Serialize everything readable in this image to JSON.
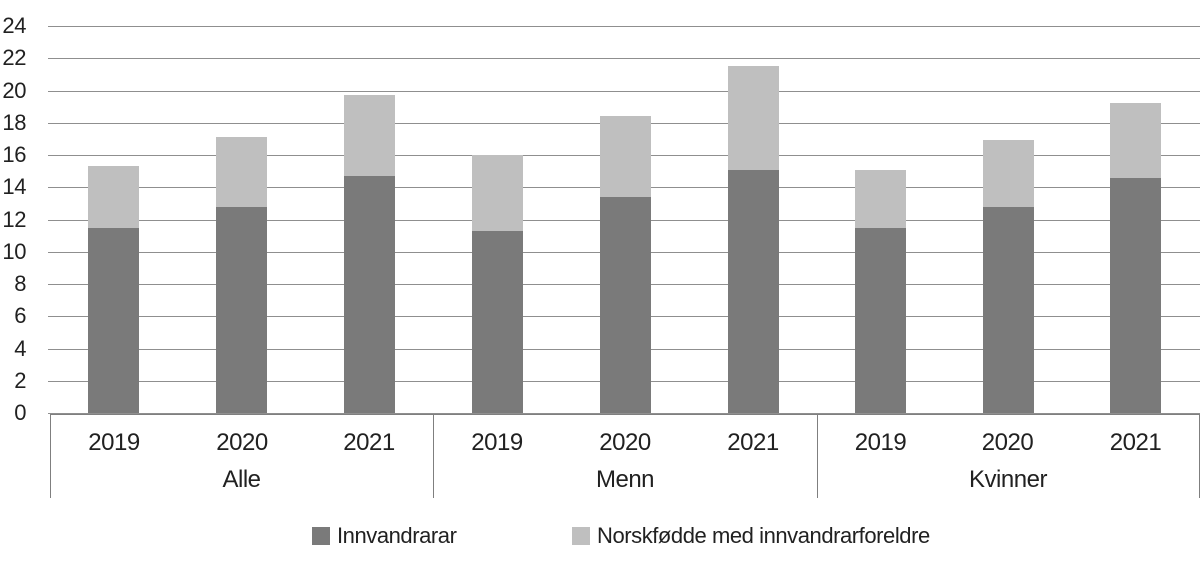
{
  "chart_data": {
    "type": "bar",
    "variant": "stacked-column",
    "title": "",
    "group_labels": [
      "Alle",
      "Menn",
      "Kvinner"
    ],
    "year_labels": [
      "2019",
      "2020",
      "2021"
    ],
    "categories": [
      "Alle 2019",
      "Alle 2020",
      "Alle 2021",
      "Menn 2019",
      "Menn 2020",
      "Menn 2021",
      "Kvinner 2019",
      "Kvinner 2020",
      "Kvinner 2021"
    ],
    "series": [
      {
        "name": "Innvandrarar",
        "color": "#7a7a7a",
        "values": [
          11.5,
          12.8,
          14.7,
          11.3,
          13.4,
          15.1,
          11.5,
          12.8,
          14.6
        ]
      },
      {
        "name": "Norskfødde med innvandrarforeldre",
        "color": "#bfbfbf",
        "values": [
          3.8,
          4.3,
          5.0,
          4.7,
          5.0,
          6.4,
          3.6,
          4.1,
          4.6
        ]
      }
    ],
    "stacked_totals": [
      15.3,
      17.1,
      19.7,
      16.0,
      18.4,
      21.5,
      15.1,
      16.9,
      19.2
    ],
    "ylim": [
      0,
      24
    ],
    "yticks": [
      0,
      2,
      4,
      6,
      8,
      10,
      12,
      14,
      16,
      18,
      20,
      22,
      24
    ],
    "grid": true,
    "legend_position": "bottom",
    "colors": {
      "gridline": "#8f8f8f",
      "axis_box": "#7f7f7f",
      "text": "#212121",
      "background": "#ffffff"
    }
  }
}
